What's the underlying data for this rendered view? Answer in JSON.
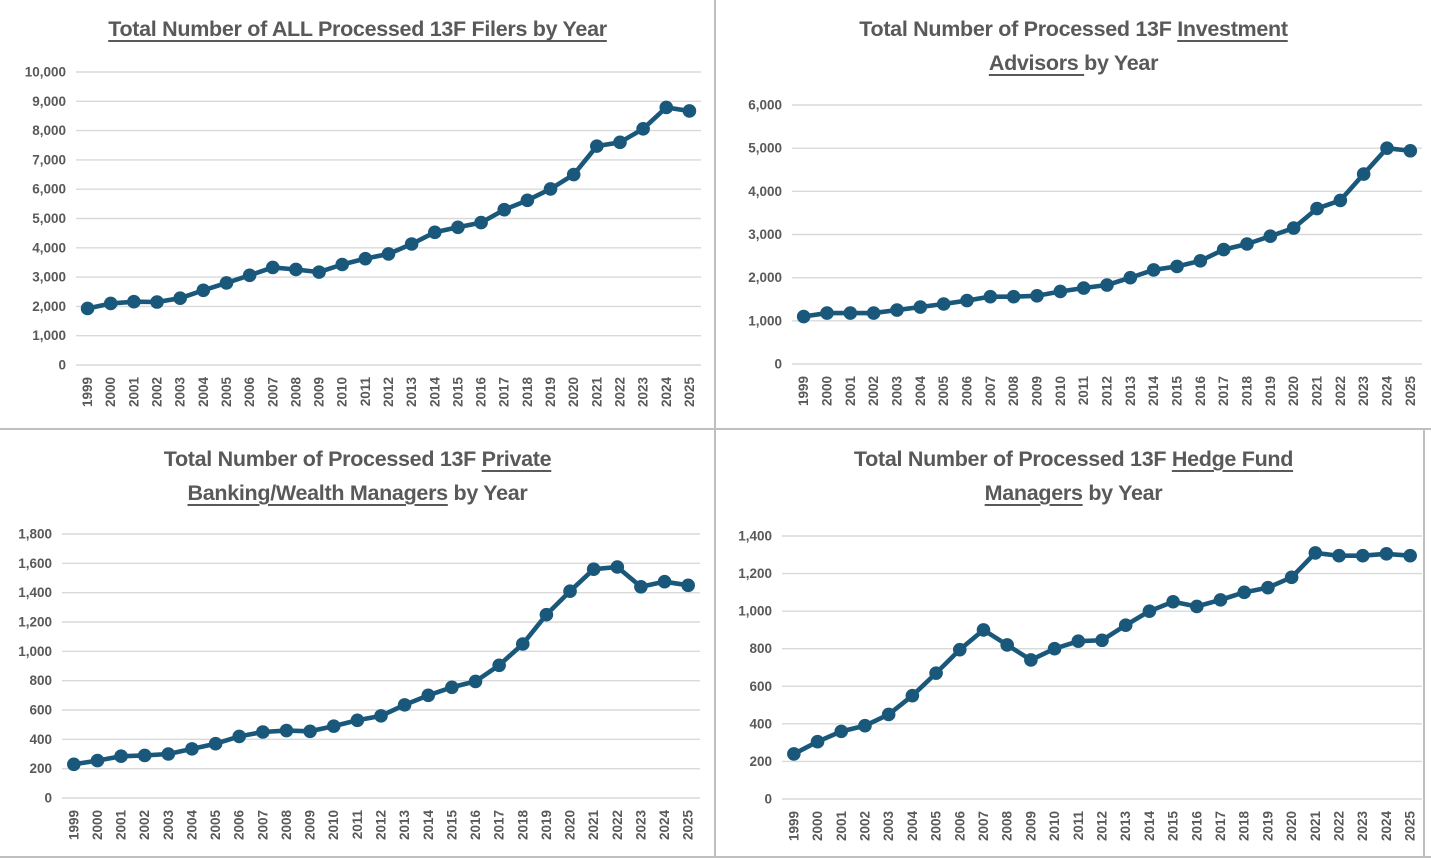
{
  "page": {
    "background": "#ffffff"
  },
  "colors": {
    "series_line": "#19587a",
    "marker": "#19587a",
    "gridline": "#d9d9d9",
    "tick_label": "#595959",
    "title_text": "#595959",
    "divider": "#bfbfbf"
  },
  "chart_data": [
    {
      "id": "all-filers",
      "type": "line",
      "title": "Total Number of ALL Processed 13F Filers by Year",
      "title_lines": [
        [
          {
            "text": "Total Number of ALL Processed 13F Filers by Year",
            "underline": true
          }
        ]
      ],
      "xlabel": "",
      "ylabel": "",
      "legend": "none",
      "grid": true,
      "marker": "circle",
      "ylim": [
        0,
        10000
      ],
      "ytick_step": 1000,
      "ytick_labels": [
        "0",
        "1,000",
        "2,000",
        "3,000",
        "4,000",
        "5,000",
        "6,000",
        "7,000",
        "8,000",
        "9,000",
        "10,000"
      ],
      "categories": [
        "1999",
        "2000",
        "2001",
        "2002",
        "2003",
        "2004",
        "2005",
        "2006",
        "2007",
        "2008",
        "2009",
        "2010",
        "2011",
        "2012",
        "2013",
        "2014",
        "2015",
        "2016",
        "2017",
        "2018",
        "2019",
        "2020",
        "2021",
        "2022",
        "2023",
        "2024",
        "2025"
      ],
      "values": [
        1930,
        2100,
        2160,
        2150,
        2280,
        2550,
        2800,
        3060,
        3330,
        3260,
        3170,
        3430,
        3630,
        3790,
        4130,
        4530,
        4700,
        4860,
        5300,
        5620,
        6010,
        6500,
        7470,
        7600,
        8060,
        8790,
        8670
      ]
    },
    {
      "id": "investment-advisors",
      "type": "line",
      "title": "Total Number of Processed 13F Investment Advisors by Year",
      "title_lines": [
        [
          {
            "text": "Total Number of Processed 13F ",
            "underline": false
          },
          {
            "text": "Investment",
            "underline": true
          }
        ],
        [
          {
            "text": "Advisors ",
            "underline": true
          },
          {
            "text": "by Year",
            "underline": false
          }
        ]
      ],
      "xlabel": "",
      "ylabel": "",
      "legend": "none",
      "grid": true,
      "marker": "circle",
      "ylim": [
        0,
        6000
      ],
      "ytick_step": 1000,
      "ytick_labels": [
        "0",
        "1,000",
        "2,000",
        "3,000",
        "4,000",
        "5,000",
        "6,000"
      ],
      "categories": [
        "1999",
        "2000",
        "2001",
        "2002",
        "2003",
        "2004",
        "2005",
        "2006",
        "2007",
        "2008",
        "2009",
        "2010",
        "2011",
        "2012",
        "2013",
        "2014",
        "2015",
        "2016",
        "2017",
        "2018",
        "2019",
        "2020",
        "2021",
        "2022",
        "2023",
        "2024",
        "2025"
      ],
      "values": [
        1100,
        1180,
        1180,
        1180,
        1250,
        1320,
        1390,
        1470,
        1560,
        1560,
        1580,
        1680,
        1760,
        1830,
        2000,
        2180,
        2260,
        2390,
        2650,
        2780,
        2960,
        3150,
        3600,
        3790,
        4400,
        5000,
        4940
      ]
    },
    {
      "id": "private-banking-wealth-managers",
      "type": "line",
      "title": "Total Number of Processed 13F Private Banking/Wealth Managers by Year",
      "title_lines": [
        [
          {
            "text": "Total Number of Processed 13F ",
            "underline": false
          },
          {
            "text": "Private",
            "underline": true
          }
        ],
        [
          {
            "text": "Banking/Wealth Managers",
            "underline": true
          },
          {
            "text": " by Year",
            "underline": false
          }
        ]
      ],
      "xlabel": "",
      "ylabel": "",
      "legend": "none",
      "grid": true,
      "marker": "circle",
      "ylim": [
        0,
        1800
      ],
      "ytick_step": 200,
      "ytick_labels": [
        "0",
        "200",
        "400",
        "600",
        "800",
        "1,000",
        "1,200",
        "1,400",
        "1,600",
        "1,800"
      ],
      "categories": [
        "1999",
        "2000",
        "2001",
        "2002",
        "2003",
        "2004",
        "2005",
        "2006",
        "2007",
        "2008",
        "2009",
        "2010",
        "2011",
        "2012",
        "2013",
        "2014",
        "2015",
        "2016",
        "2017",
        "2018",
        "2019",
        "2020",
        "2021",
        "2022",
        "2023",
        "2024",
        "2025"
      ],
      "values": [
        230,
        255,
        285,
        290,
        300,
        335,
        370,
        420,
        450,
        460,
        455,
        490,
        530,
        560,
        635,
        700,
        755,
        795,
        905,
        1050,
        1250,
        1410,
        1560,
        1575,
        1440,
        1475,
        1450
      ]
    },
    {
      "id": "hedge-fund-managers",
      "type": "line",
      "title": "Total Number of Processed 13F Hedge Fund Managers by Year",
      "title_lines": [
        [
          {
            "text": "Total Number of Processed 13F ",
            "underline": false
          },
          {
            "text": "Hedge Fund",
            "underline": true
          }
        ],
        [
          {
            "text": "Managers",
            "underline": true
          },
          {
            "text": " by Year",
            "underline": false
          }
        ]
      ],
      "xlabel": "",
      "ylabel": "",
      "legend": "none",
      "grid": true,
      "marker": "circle",
      "ylim": [
        0,
        1400
      ],
      "ytick_step": 200,
      "ytick_labels": [
        "0",
        "200",
        "400",
        "600",
        "800",
        "1,000",
        "1,200",
        "1,400"
      ],
      "categories": [
        "1999",
        "2000",
        "2001",
        "2002",
        "2003",
        "2004",
        "2005",
        "2006",
        "2007",
        "2008",
        "2009",
        "2010",
        "2011",
        "2012",
        "2013",
        "2014",
        "2015",
        "2016",
        "2017",
        "2018",
        "2019",
        "2020",
        "2021",
        "2022",
        "2023",
        "2024",
        "2025"
      ],
      "values": [
        240,
        305,
        360,
        390,
        450,
        550,
        670,
        795,
        900,
        820,
        740,
        800,
        840,
        845,
        925,
        1000,
        1050,
        1025,
        1060,
        1100,
        1125,
        1180,
        1310,
        1295,
        1295,
        1305,
        1295
      ]
    }
  ]
}
